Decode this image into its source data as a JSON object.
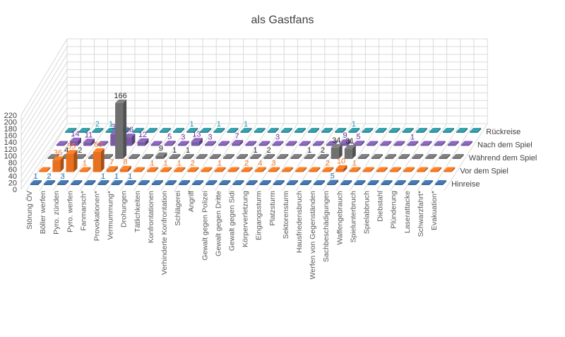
{
  "chart_data": {
    "type": "bar",
    "variant": "3d-column",
    "title": "als Gastfans",
    "xlabel": "",
    "ylabel": "",
    "ylim": [
      0,
      220
    ],
    "yticks": [
      0,
      20,
      40,
      60,
      80,
      100,
      120,
      140,
      160,
      180,
      200,
      220
    ],
    "grid": true,
    "legend": "right (series axis labels)",
    "categories": [
      "Störung ÖV",
      "Böller werfen",
      "Pyro. zünden",
      "Pyro. werfen",
      "Fanmarsch*",
      "Provokationen*",
      "Vermummung*",
      "Drohungen",
      "Tätlichkeiten",
      "Konfrontationen",
      "Verhinderte Konfrontation",
      "Schlägerei",
      "Angriff",
      "Gewalt gegen Polizei",
      "Gewalt gegen Dritte",
      "Gewalt gegen Sidi",
      "Körperverletzung",
      "Eingangssturm",
      "Platzsturm",
      "Sektorensturm",
      "Hausfriedensbruch",
      "Werfen von Gegenständen",
      "Sachbeschädigungen",
      "Waffengebrauch",
      "Spielunterbruch",
      "Spielabbruch",
      "Diebstahl",
      "Plünderung",
      "Laserattacke",
      "Schwarzfahrt*",
      "Evakuation*"
    ],
    "series": [
      {
        "name": "Hinreise",
        "color": "#3c6aa0",
        "label_color": "#2e75b6",
        "values": [
          1,
          2,
          3,
          0,
          0,
          1,
          1,
          1,
          0,
          0,
          0,
          0,
          0,
          0,
          0,
          0,
          0,
          0,
          0,
          0,
          0,
          0,
          5,
          0,
          0,
          0,
          0,
          0,
          0,
          0,
          0
        ]
      },
      {
        "name": "Vor dem Spiel",
        "color": "#e8701f",
        "label_color": "#ed7d31",
        "values": [
          0,
          36,
          55,
          1,
          60,
          7,
          8,
          0,
          1,
          1,
          1,
          2,
          0,
          1,
          0,
          2,
          4,
          3,
          0,
          0,
          0,
          2,
          10,
          1,
          0,
          0,
          0,
          0,
          0,
          0,
          0
        ]
      },
      {
        "name": "Während dem Spiel",
        "color": "#707070",
        "label_color": "#262626",
        "values": [
          0,
          4,
          2,
          0,
          0,
          166,
          0,
          0,
          9,
          1,
          1,
          0,
          0,
          0,
          0,
          1,
          2,
          0,
          0,
          1,
          2,
          34,
          31,
          0,
          0,
          0,
          0,
          0,
          0,
          0,
          0
        ]
      },
      {
        "name": "Nach dem Spiel",
        "color": "#7b5aa8",
        "label_color": "#7030a0",
        "values": [
          0,
          14,
          11,
          0,
          35,
          26,
          12,
          0,
          5,
          3,
          13,
          3,
          0,
          7,
          0,
          0,
          3,
          0,
          0,
          0,
          0,
          9,
          5,
          0,
          0,
          0,
          1,
          0,
          0,
          0,
          0
        ]
      },
      {
        "name": "Rückreise",
        "color": "#2f8e99",
        "label_color": "#1f9bb0",
        "values": [
          0,
          0,
          2,
          1,
          0,
          0,
          0,
          0,
          0,
          1,
          0,
          1,
          0,
          1,
          0,
          0,
          0,
          0,
          0,
          0,
          0,
          1,
          0,
          0,
          0,
          0,
          0,
          0,
          0,
          0,
          0
        ]
      }
    ]
  }
}
